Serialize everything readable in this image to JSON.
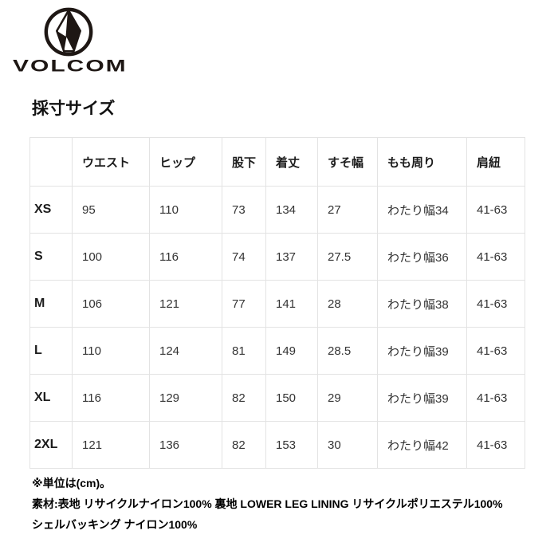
{
  "brand": {
    "wordmark": "VOLCOM"
  },
  "heading": "採寸サイズ",
  "size_table": {
    "columns": [
      "",
      "ウエスト",
      "ヒップ",
      "股下",
      "着丈",
      "すそ幅",
      "もも周り",
      "肩紐"
    ],
    "rows": [
      {
        "size": "XS",
        "values": [
          "95",
          "110",
          "73",
          "134",
          "27",
          "わたり幅34",
          "41-63"
        ]
      },
      {
        "size": "S",
        "values": [
          "100",
          "116",
          "74",
          "137",
          "27.5",
          "わたり幅36",
          "41-63"
        ]
      },
      {
        "size": "M",
        "values": [
          "106",
          "121",
          "77",
          "141",
          "28",
          "わたり幅38",
          "41-63"
        ]
      },
      {
        "size": "L",
        "values": [
          "110",
          "124",
          "81",
          "149",
          "28.5",
          "わたり幅39",
          "41-63"
        ]
      },
      {
        "size": "XL",
        "values": [
          "116",
          "129",
          "82",
          "150",
          "29",
          "わたり幅39",
          "41-63"
        ]
      },
      {
        "size": "2XL",
        "values": [
          "121",
          "136",
          "82",
          "153",
          "30",
          "わたり幅42",
          "41-63"
        ]
      }
    ]
  },
  "notes": {
    "unit": "※単位は(cm)。",
    "material_line1": "素材:表地 リサイクルナイロン100% 裏地 LOWER LEG LINING リサイクルポリエステル100%",
    "material_line2": "シェルバッキング ナイロン100%"
  },
  "colors": {
    "logo": "#1e1714",
    "border": "#e3e3e3",
    "text": "#222222",
    "cell_text": "#333333"
  }
}
